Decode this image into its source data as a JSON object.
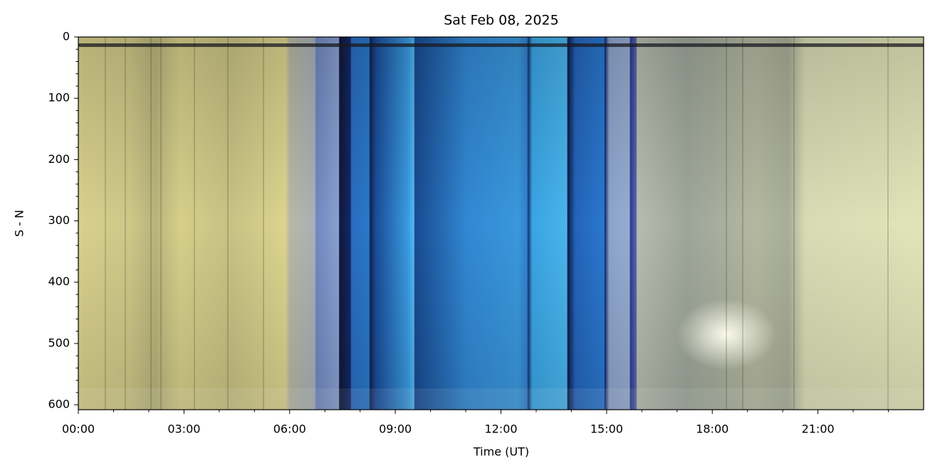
{
  "chart_data": {
    "type": "image",
    "title": "Sat Feb 08, 2025",
    "xlabel": "Time (UT)",
    "ylabel": "S - N",
    "xlim": [
      0,
      24
    ],
    "xticks": [
      {
        "value": 0,
        "label": "00:00"
      },
      {
        "value": 3,
        "label": "03:00"
      },
      {
        "value": 6,
        "label": "06:00"
      },
      {
        "value": 9,
        "label": "09:00"
      },
      {
        "value": 12,
        "label": "12:00"
      },
      {
        "value": 15,
        "label": "15:00"
      },
      {
        "value": 18,
        "label": "18:00"
      },
      {
        "value": 21,
        "label": "21:00"
      }
    ],
    "xminorticks": [
      1,
      2,
      4,
      5,
      7,
      8,
      10,
      11,
      13,
      14,
      16,
      17,
      19,
      20,
      22,
      23
    ],
    "ylim": [
      608,
      0
    ],
    "yticks": [
      0,
      100,
      200,
      300,
      400,
      500,
      600
    ],
    "yminorticks": [
      20,
      40,
      60,
      80,
      120,
      140,
      160,
      180,
      220,
      240,
      260,
      280,
      320,
      340,
      360,
      380,
      420,
      440,
      460,
      480,
      520,
      540,
      560,
      580
    ]
  }
}
